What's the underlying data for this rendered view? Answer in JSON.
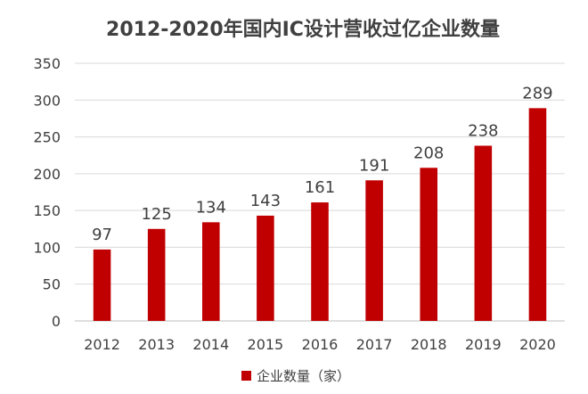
{
  "chart_data": {
    "type": "bar",
    "title": "2012-2020年国内IC设计营收过亿企业数量",
    "xlabel": "",
    "ylabel": "",
    "categories": [
      "2012",
      "2013",
      "2014",
      "2015",
      "2016",
      "2017",
      "2018",
      "2019",
      "2020"
    ],
    "series": [
      {
        "name": "企业数量（家）",
        "color": "#c00000",
        "values": [
          97,
          125,
          134,
          143,
          161,
          191,
          208,
          238,
          289
        ]
      }
    ],
    "ylim": [
      0,
      350
    ],
    "yticks": [
      0,
      50,
      100,
      150,
      200,
      250,
      300,
      350
    ],
    "grid": true,
    "legend_position": "bottom",
    "data_labels": true
  }
}
